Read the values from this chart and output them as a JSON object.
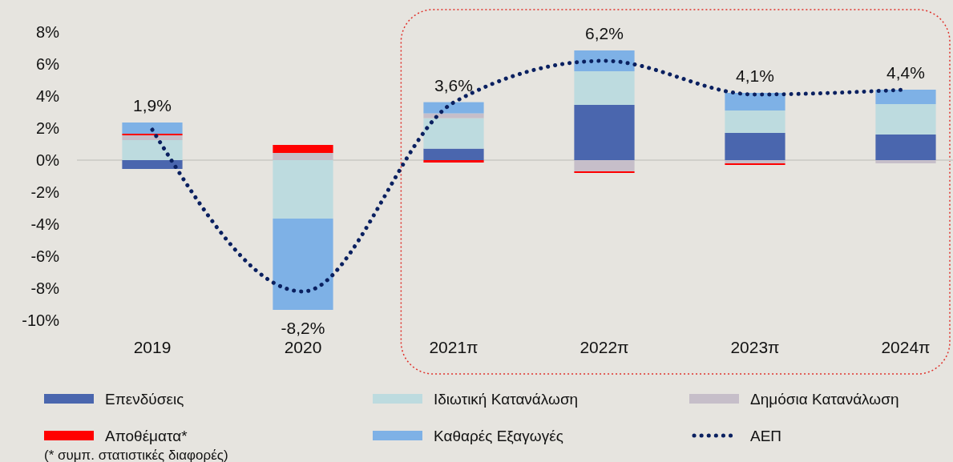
{
  "chart_data": {
    "type": "bar",
    "stacked": true,
    "categories": [
      "2019",
      "2020",
      "2021π",
      "2022π",
      "2023π",
      "2024π"
    ],
    "series": [
      {
        "name": "Επενδύσεις",
        "color": "#4a66ae",
        "values": [
          -0.55,
          0,
          0.72,
          3.45,
          1.7,
          1.6
        ]
      },
      {
        "name": "Ιδιωτική Κατανάλωση",
        "color": "#bddbdf",
        "values": [
          1.25,
          -3.65,
          1.9,
          2.1,
          1.4,
          1.9
        ]
      },
      {
        "name": "Δημόσια Κατανάλωση",
        "color": "#c6bec9",
        "values": [
          0.3,
          0.45,
          0.3,
          -0.7,
          -0.2,
          -0.2
        ]
      },
      {
        "name": "Αποθέματα*",
        "color": "#ff0000",
        "values": [
          0.1,
          0.5,
          -0.15,
          -0.1,
          -0.1,
          0
        ]
      },
      {
        "name": "Καθαρές Εξαγωγές",
        "color": "#7eb1e6",
        "values": [
          0.7,
          -5.7,
          0.7,
          1.3,
          1.1,
          0.9
        ]
      },
      {
        "name": "ΑΕΠ",
        "type": "line",
        "color": "#0a2060",
        "line_style": "dotted",
        "values": [
          1.9,
          -8.2,
          3.6,
          6.2,
          4.1,
          4.4
        ],
        "value_labels": [
          "1,9%",
          "-8,2%",
          "3,6%",
          "6,2%",
          "4,1%",
          "4,4%"
        ]
      }
    ],
    "ylim": [
      -10,
      8
    ],
    "yticks": [
      {
        "value": -10,
        "label": "-10%"
      },
      {
        "value": -8,
        "label": "-8%"
      },
      {
        "value": -6,
        "label": "-6%"
      },
      {
        "value": -4,
        "label": "-4%"
      },
      {
        "value": -2,
        "label": "-2%"
      },
      {
        "value": 0,
        "label": "0%"
      },
      {
        "value": 2,
        "label": "2%"
      },
      {
        "value": 4,
        "label": "4%"
      },
      {
        "value": 6,
        "label": "6%"
      },
      {
        "value": 8,
        "label": "8%"
      }
    ],
    "legend": "bottom",
    "annotations": [
      "(* συμπ. στατιστικές διαφορές)"
    ]
  }
}
